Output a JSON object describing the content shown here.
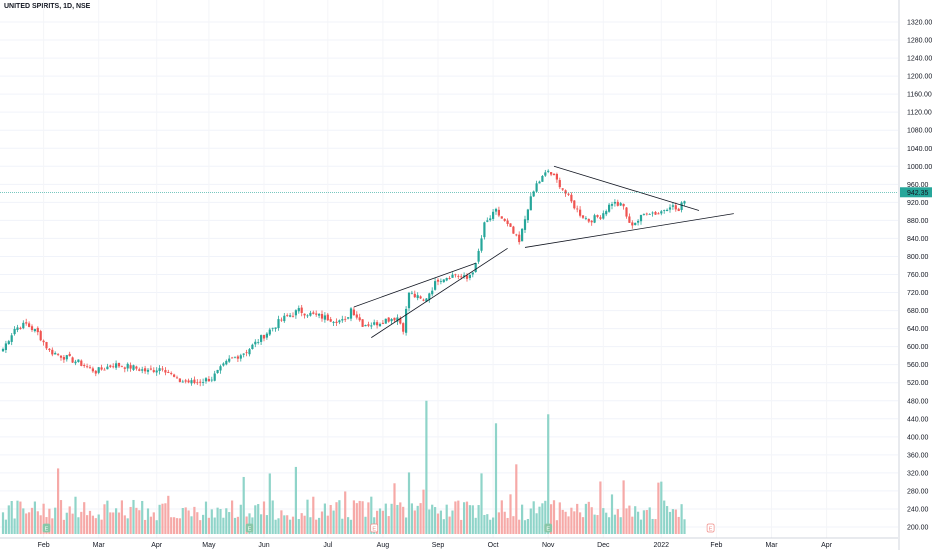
{
  "header": {
    "symbol_label": "UNITED SPIRITS, 1D, NSE"
  },
  "price_axis": {
    "ticks": [
      "1320.00",
      "1280.00",
      "1240.00",
      "1200.00",
      "1160.00",
      "1120.00",
      "1080.00",
      "1040.00",
      "1000.00",
      "960.00",
      "920.00",
      "880.00",
      "840.00",
      "800.00",
      "760.00",
      "720.00",
      "680.00",
      "640.00",
      "600.00",
      "560.00",
      "520.00",
      "480.00",
      "440.00",
      "400.00",
      "360.00",
      "320.00",
      "280.00",
      "240.00",
      "200.00"
    ],
    "tick_values": [
      1320,
      1280,
      1240,
      1200,
      1160,
      1120,
      1080,
      1040,
      1000,
      960,
      920,
      880,
      840,
      800,
      760,
      720,
      680,
      640,
      600,
      560,
      520,
      480,
      440,
      400,
      360,
      320,
      280,
      240,
      200
    ],
    "current_price_label": "942.35",
    "current_price": 942.35
  },
  "time_axis": {
    "labels": [
      "Feb",
      "Mar",
      "Apr",
      "May",
      "Jun",
      "Jul",
      "Aug",
      "Sep",
      "Oct",
      "Nov",
      "Dec",
      "2022",
      "Feb",
      "Mar",
      "Apr"
    ],
    "label_day_index": [
      14,
      33,
      53,
      71,
      90,
      112,
      131,
      150,
      169,
      188,
      207,
      227,
      246,
      265,
      284
    ]
  },
  "colors": {
    "up": "#26a69a",
    "down": "#ef5350",
    "up_volume": "#8fd4c9",
    "down_volume": "#f6a9a7",
    "price_line": "#26a69a",
    "trendline": "#131722",
    "event_badge": "#89c7a8",
    "event_badge_warn": "#f08b86"
  },
  "chart_data": {
    "type": "candlestick",
    "title": "UNITED SPIRITS, 1D, NSE",
    "x_start": "Jan 2021",
    "y_range": [
      200,
      1340
    ],
    "candle_count": 236,
    "close_anchors": [
      [
        0,
        595
      ],
      [
        4,
        640
      ],
      [
        8,
        650
      ],
      [
        12,
        630
      ],
      [
        16,
        590
      ],
      [
        20,
        580
      ],
      [
        26,
        565
      ],
      [
        32,
        545
      ],
      [
        38,
        560
      ],
      [
        44,
        555
      ],
      [
        50,
        545
      ],
      [
        55,
        555
      ],
      [
        60,
        525
      ],
      [
        66,
        520
      ],
      [
        72,
        530
      ],
      [
        78,
        570
      ],
      [
        84,
        590
      ],
      [
        90,
        625
      ],
      [
        96,
        660
      ],
      [
        102,
        680
      ],
      [
        107,
        670
      ],
      [
        113,
        662
      ],
      [
        118,
        655
      ],
      [
        120,
        685
      ],
      [
        124,
        650
      ],
      [
        128,
        650
      ],
      [
        132,
        660
      ],
      [
        136,
        665
      ],
      [
        138,
        640
      ],
      [
        140,
        720
      ],
      [
        145,
        700
      ],
      [
        150,
        750
      ],
      [
        156,
        760
      ],
      [
        160,
        750
      ],
      [
        163,
        780
      ],
      [
        166,
        870
      ],
      [
        170,
        900
      ],
      [
        175,
        860
      ],
      [
        178,
        830
      ],
      [
        181,
        910
      ],
      [
        184,
        960
      ],
      [
        188,
        990
      ],
      [
        192,
        960
      ],
      [
        196,
        920
      ],
      [
        199,
        895
      ],
      [
        202,
        880
      ],
      [
        206,
        890
      ],
      [
        210,
        920
      ],
      [
        214,
        910
      ],
      [
        216,
        870
      ],
      [
        219,
        880
      ],
      [
        222,
        900
      ],
      [
        226,
        895
      ],
      [
        230,
        915
      ],
      [
        233,
        900
      ],
      [
        236,
        942
      ]
    ],
    "volume_peak_values": [
      480,
      450,
      430
    ],
    "trendlines": [
      {
        "name": "upper-wedge",
        "points": [
          [
            121,
            688
          ],
          [
            163,
            785
          ]
        ]
      },
      {
        "name": "lower-wedge",
        "points": [
          [
            127,
            620
          ],
          [
            174,
            818
          ]
        ]
      },
      {
        "name": "triangle-resistance",
        "points": [
          [
            190,
            1000
          ],
          [
            240,
            902
          ]
        ]
      },
      {
        "name": "triangle-support",
        "points": [
          [
            180,
            820
          ],
          [
            252,
            895
          ]
        ]
      }
    ],
    "event_markers": [
      {
        "day": 15,
        "label": "E",
        "type": "earnings"
      },
      {
        "day": 85,
        "label": "E",
        "type": "earnings"
      },
      {
        "day": 128,
        "label": "E",
        "type": "earnings-warn"
      },
      {
        "day": 188,
        "label": "E",
        "type": "earnings"
      },
      {
        "day": 244,
        "label": "E",
        "type": "earnings-warn"
      }
    ]
  }
}
